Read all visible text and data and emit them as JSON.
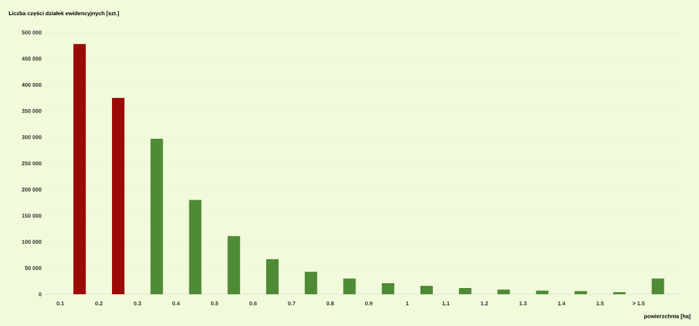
{
  "chart_data": {
    "type": "bar",
    "ylabel": "Liczba części działek ewidencyjnych [szt.]",
    "xlabel": "powierzchnia [ha]",
    "categories": [
      "0.1",
      "0.2",
      "0.3",
      "0.4",
      "0.5",
      "0.6",
      "0.7",
      "0.8",
      "0.9",
      "1",
      "1.1",
      "1.2",
      "1.3",
      "1.4",
      "1.5",
      "> 1.5"
    ],
    "values": [
      478000,
      375000,
      297000,
      180000,
      111000,
      67000,
      43000,
      30000,
      21000,
      16000,
      12000,
      9000,
      7000,
      6000,
      4000,
      30000
    ],
    "colors": [
      "#9b0a05",
      "#9b0a05",
      "#4f8a35",
      "#4f8a35",
      "#4f8a35",
      "#4f8a35",
      "#4f8a35",
      "#4f8a35",
      "#4f8a35",
      "#4f8a35",
      "#4f8a35",
      "#4f8a35",
      "#4f8a35",
      "#4f8a35",
      "#4f8a35",
      "#4f8a35"
    ],
    "ylim": [
      0,
      500000
    ],
    "yticks": [
      0,
      {
        "value": 50000,
        "label": "50 000"
      },
      {
        "value": 100000,
        "label": "100 000"
      },
      {
        "value": 150000,
        "label": "150 000"
      },
      {
        "value": 200000,
        "label": "200 000"
      },
      {
        "value": 250000,
        "label": "250 000"
      },
      {
        "value": 300000,
        "label": "300 000"
      },
      {
        "value": 350000,
        "label": "350 000"
      },
      {
        "value": 400000,
        "label": "400 000"
      },
      {
        "value": 450000,
        "label": "450 000"
      },
      {
        "value": 500000,
        "label": "500 000"
      }
    ],
    "grid": "y"
  }
}
